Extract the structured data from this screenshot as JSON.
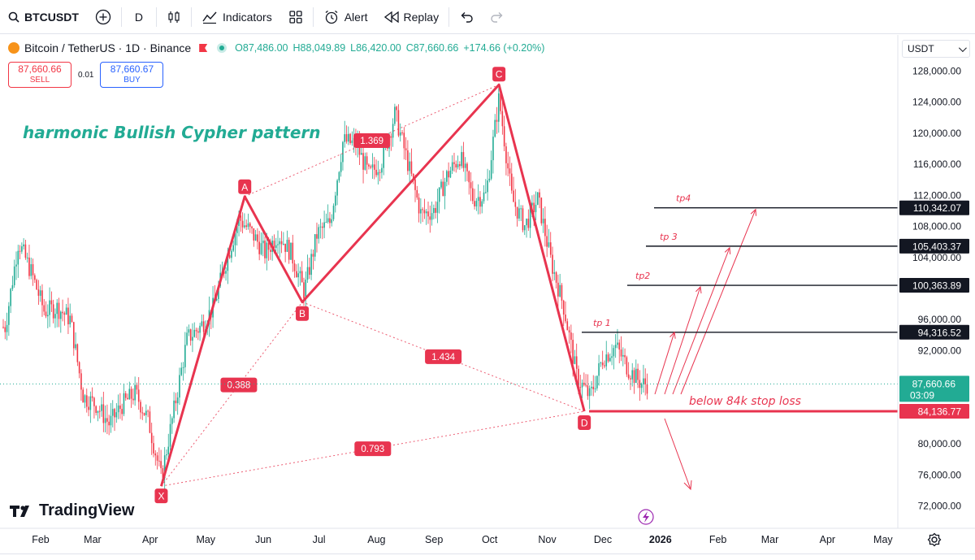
{
  "toolbar": {
    "symbol": "BTCUSDT",
    "interval": "D",
    "indicators_label": "Indicators",
    "alert_label": "Alert",
    "replay_label": "Replay"
  },
  "legend": {
    "title": "Bitcoin / TetherUS · 1D · Binance",
    "open": "O87,486.00",
    "high": "H88,049.89",
    "low": "L86,420.00",
    "close": "C87,660.66",
    "change": "+174.66 (+0.20%)"
  },
  "trade": {
    "sell_price": "87,660.66",
    "sell_label": "SELL",
    "spread": "0.01",
    "buy_price": "87,660.67",
    "buy_label": "BUY"
  },
  "currency": "USDT",
  "branding": "TradingView",
  "colors": {
    "up": "#22ab94",
    "down": "#f23645",
    "pattern": "#e8344f",
    "annotation": "#22ab94"
  },
  "chart_data": {
    "type": "candlestick",
    "title": "harmonic Bullish Cypher pattern",
    "x_tick_labels": [
      "Feb",
      "Mar",
      "Apr",
      "May",
      "Jun",
      "Jul",
      "Aug",
      "Sep",
      "Oct",
      "Nov",
      "Dec",
      "2026",
      "Feb",
      "Mar",
      "Apr",
      "May"
    ],
    "y_tick_labels": [
      "128,000.00",
      "124,000.00",
      "120,000.00",
      "116,000.00",
      "112,000.00",
      "108,000.00",
      "104,000.00",
      "96,000.00",
      "92,000.00",
      "80,000.00",
      "76,000.00",
      "72,000.00"
    ],
    "ylim": [
      70000,
      130000
    ],
    "current_price": {
      "price": 87660.66,
      "label": "87,660.66",
      "countdown": "03:09"
    },
    "pattern_points": [
      {
        "name": "X",
        "date": "2025-04-07",
        "price": 74500
      },
      {
        "name": "A",
        "date": "2025-05-22",
        "price": 111800
      },
      {
        "name": "B",
        "date": "2025-06-22",
        "price": 98200
      },
      {
        "name": "C",
        "date": "2025-10-06",
        "price": 126200
      },
      {
        "name": "D",
        "date": "2025-11-21",
        "price": 84137
      }
    ],
    "ratios": [
      {
        "label": "0.388",
        "between": "X-B"
      },
      {
        "label": "1.369",
        "between": "A-C"
      },
      {
        "label": "1.434",
        "between": "B-D"
      },
      {
        "label": "0.793",
        "between": "X-D"
      }
    ],
    "levels": [
      {
        "name": "tp4",
        "label": "tp4",
        "price": 110342.07,
        "price_label": "110,342.07"
      },
      {
        "name": "tp3",
        "label": "tp 3",
        "price": 105403.37,
        "price_label": "105,403.37"
      },
      {
        "name": "tp2",
        "label": "tp2",
        "price": 100363.89,
        "price_label": "100,363.89"
      },
      {
        "name": "tp1",
        "label": "tp 1",
        "price": 94316.52,
        "price_label": "94,316.52"
      },
      {
        "name": "stop",
        "label": "below 84k stop loss",
        "price": 84136.77,
        "price_label": "84,136.77"
      }
    ],
    "price_path": [
      [
        "2025-01-13",
        95000
      ],
      [
        "2025-01-20",
        106000
      ],
      [
        "2025-01-27",
        102000
      ],
      [
        "2025-02-03",
        97000
      ],
      [
        "2025-02-10",
        97500
      ],
      [
        "2025-02-17",
        96000
      ],
      [
        "2025-02-24",
        86000
      ],
      [
        "2025-03-03",
        85000
      ],
      [
        "2025-03-10",
        82500
      ],
      [
        "2025-03-17",
        85000
      ],
      [
        "2025-03-24",
        86500
      ],
      [
        "2025-03-31",
        83000
      ],
      [
        "2025-04-07",
        75500
      ],
      [
        "2025-04-14",
        84500
      ],
      [
        "2025-04-21",
        93500
      ],
      [
        "2025-04-28",
        95000
      ],
      [
        "2025-05-05",
        97500
      ],
      [
        "2025-05-12",
        103500
      ],
      [
        "2025-05-19",
        109000
      ],
      [
        "2025-05-26",
        107000
      ],
      [
        "2025-06-02",
        104500
      ],
      [
        "2025-06-09",
        107000
      ],
      [
        "2025-06-16",
        104500
      ],
      [
        "2025-06-23",
        99500
      ],
      [
        "2025-06-30",
        107000
      ],
      [
        "2025-07-07",
        108500
      ],
      [
        "2025-07-14",
        119000
      ],
      [
        "2025-07-21",
        118500
      ],
      [
        "2025-07-28",
        114500
      ],
      [
        "2025-08-04",
        116500
      ],
      [
        "2025-08-11",
        122500
      ],
      [
        "2025-08-18",
        116000
      ],
      [
        "2025-08-25",
        109500
      ],
      [
        "2025-09-01",
        110000
      ],
      [
        "2025-09-08",
        114500
      ],
      [
        "2025-09-15",
        117000
      ],
      [
        "2025-09-22",
        111500
      ],
      [
        "2025-09-29",
        112000
      ],
      [
        "2025-10-06",
        124500
      ],
      [
        "2025-10-13",
        111500
      ],
      [
        "2025-10-20",
        108000
      ],
      [
        "2025-10-27",
        111500
      ],
      [
        "2025-11-03",
        103500
      ],
      [
        "2025-11-10",
        97500
      ],
      [
        "2025-11-17",
        88500
      ],
      [
        "2025-11-24",
        86000
      ],
      [
        "2025-12-01",
        91000
      ],
      [
        "2025-12-08",
        92500
      ],
      [
        "2025-12-15",
        89500
      ],
      [
        "2025-12-22",
        87660
      ]
    ]
  }
}
